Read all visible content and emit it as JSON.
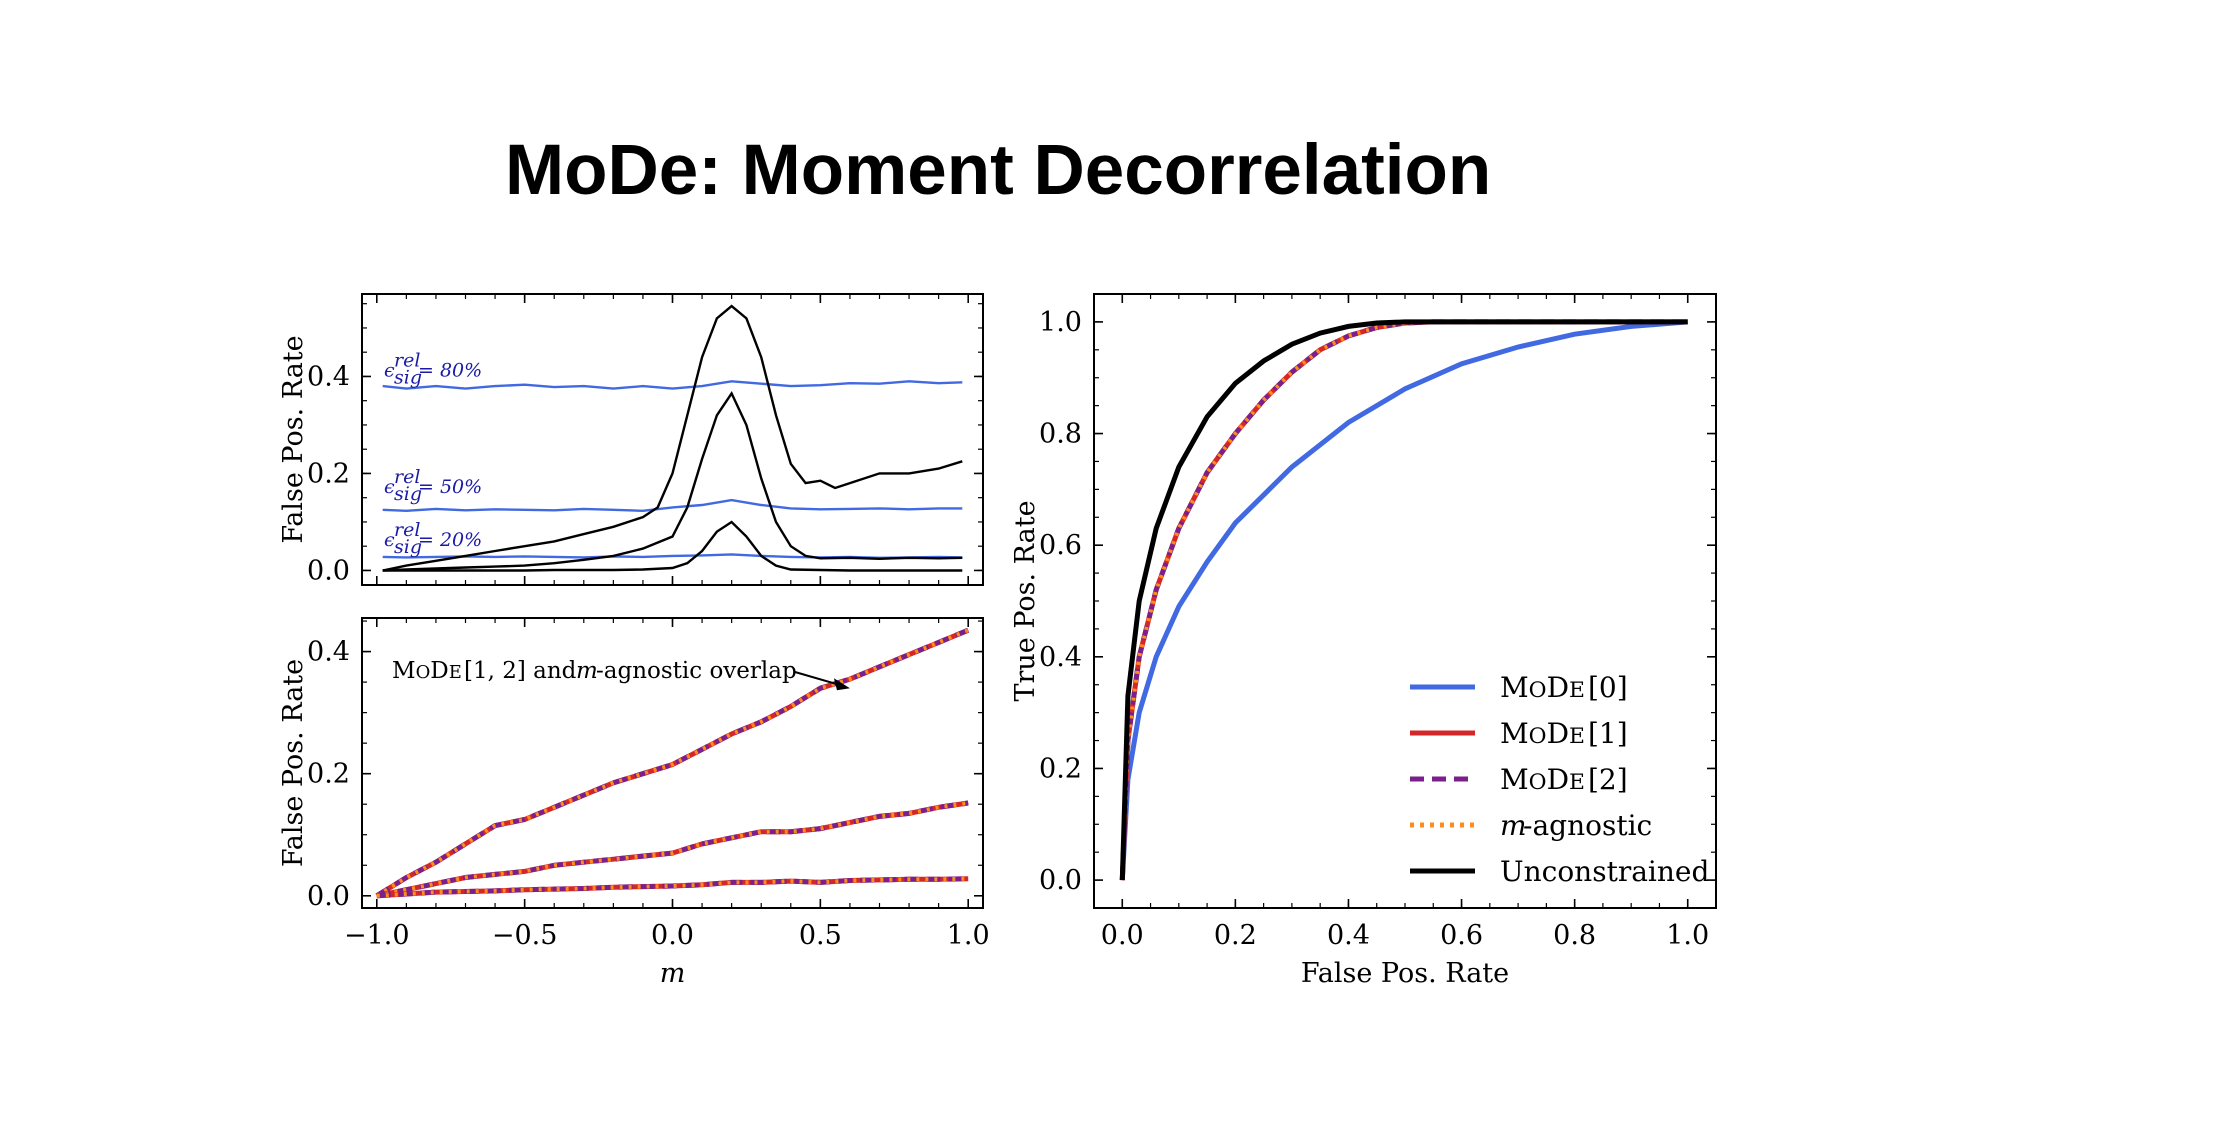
{
  "title": "MoDe:  Moment Decorrelation",
  "colors": {
    "mode0": "#4169e1",
    "mode1": "#d62728",
    "mode2": "#7b1f8a",
    "m_agnostic": "#ff8c1a",
    "unconstrained": "#000000",
    "eps_label": "#1a1aa6"
  },
  "chart_data": [
    {
      "id": "top-left",
      "type": "line",
      "xlabel": "",
      "ylabel": "False Pos. Rate",
      "xlim": [
        -1.05,
        1.05
      ],
      "ylim": [
        -0.03,
        0.57
      ],
      "yticks": [
        0.0,
        0.2,
        0.4
      ],
      "ytick_labels": [
        "0.0",
        "0.2",
        "0.4"
      ],
      "annotations": [
        "ϵ_sig^rel = 80%",
        "ϵ_sig^rel = 50%",
        "ϵ_sig^rel = 20%"
      ],
      "annotation_parts": [
        {
          "base": "ϵ",
          "sup": "rel",
          "sub": "sig",
          "text": " = 80%"
        },
        {
          "base": "ϵ",
          "sup": "rel",
          "sub": "sig",
          "text": " = 50%"
        },
        {
          "base": "ϵ",
          "sup": "rel",
          "sub": "sig",
          "text": " = 20%"
        }
      ],
      "series": [
        {
          "color": "#4169e1",
          "x": [
            -0.98,
            -0.9,
            -0.8,
            -0.7,
            -0.6,
            -0.5,
            -0.4,
            -0.3,
            -0.2,
            -0.1,
            0.0,
            0.1,
            0.2,
            0.3,
            0.4,
            0.5,
            0.6,
            0.7,
            0.8,
            0.9,
            0.98
          ],
          "values": [
            0.38,
            0.375,
            0.38,
            0.375,
            0.38,
            0.383,
            0.378,
            0.38,
            0.375,
            0.38,
            0.375,
            0.38,
            0.39,
            0.385,
            0.38,
            0.382,
            0.386,
            0.385,
            0.39,
            0.386,
            0.388
          ]
        },
        {
          "color": "#4169e1",
          "x": [
            -0.98,
            -0.9,
            -0.8,
            -0.7,
            -0.6,
            -0.5,
            -0.4,
            -0.3,
            -0.2,
            -0.1,
            0.0,
            0.1,
            0.2,
            0.3,
            0.4,
            0.5,
            0.6,
            0.7,
            0.8,
            0.9,
            0.98
          ],
          "values": [
            0.125,
            0.123,
            0.127,
            0.124,
            0.126,
            0.125,
            0.124,
            0.127,
            0.125,
            0.123,
            0.13,
            0.135,
            0.145,
            0.135,
            0.128,
            0.126,
            0.127,
            0.128,
            0.126,
            0.128,
            0.128
          ]
        },
        {
          "color": "#4169e1",
          "x": [
            -0.98,
            -0.9,
            -0.8,
            -0.7,
            -0.6,
            -0.5,
            -0.4,
            -0.3,
            -0.2,
            -0.1,
            0.0,
            0.1,
            0.2,
            0.3,
            0.4,
            0.5,
            0.6,
            0.7,
            0.8,
            0.9,
            0.98
          ],
          "values": [
            0.028,
            0.027,
            0.028,
            0.029,
            0.028,
            0.029,
            0.028,
            0.027,
            0.029,
            0.028,
            0.03,
            0.031,
            0.033,
            0.03,
            0.028,
            0.027,
            0.028,
            0.026,
            0.027,
            0.028,
            0.027
          ]
        },
        {
          "color": "#000000",
          "x": [
            -0.98,
            -0.9,
            -0.8,
            -0.7,
            -0.6,
            -0.5,
            -0.4,
            -0.3,
            -0.2,
            -0.1,
            -0.05,
            0.0,
            0.05,
            0.1,
            0.15,
            0.2,
            0.25,
            0.3,
            0.35,
            0.4,
            0.45,
            0.5,
            0.55,
            0.6,
            0.7,
            0.8,
            0.9,
            0.98
          ],
          "values": [
            0.0,
            0.01,
            0.02,
            0.03,
            0.04,
            0.05,
            0.06,
            0.075,
            0.09,
            0.11,
            0.13,
            0.2,
            0.32,
            0.44,
            0.52,
            0.545,
            0.52,
            0.44,
            0.32,
            0.22,
            0.18,
            0.185,
            0.17,
            0.18,
            0.2,
            0.2,
            0.21,
            0.225
          ]
        },
        {
          "color": "#000000",
          "x": [
            -0.98,
            -0.9,
            -0.8,
            -0.7,
            -0.6,
            -0.5,
            -0.4,
            -0.3,
            -0.2,
            -0.1,
            0.0,
            0.05,
            0.1,
            0.15,
            0.2,
            0.25,
            0.3,
            0.35,
            0.4,
            0.45,
            0.5,
            0.6,
            0.7,
            0.8,
            0.9,
            0.98
          ],
          "values": [
            0.0,
            0.002,
            0.004,
            0.006,
            0.008,
            0.01,
            0.015,
            0.022,
            0.03,
            0.045,
            0.07,
            0.13,
            0.23,
            0.32,
            0.365,
            0.3,
            0.19,
            0.1,
            0.05,
            0.03,
            0.025,
            0.026,
            0.024,
            0.026,
            0.025,
            0.026
          ]
        },
        {
          "color": "#000000",
          "x": [
            -0.98,
            -0.9,
            -0.8,
            -0.7,
            -0.6,
            -0.5,
            -0.4,
            -0.3,
            -0.2,
            -0.1,
            0.0,
            0.05,
            0.1,
            0.15,
            0.2,
            0.25,
            0.3,
            0.35,
            0.4,
            0.5,
            0.6,
            0.7,
            0.8,
            0.9,
            0.98
          ],
          "values": [
            0.0,
            0.0,
            0.0,
            0.0,
            0.0,
            0.0,
            0.001,
            0.001,
            0.001,
            0.002,
            0.005,
            0.015,
            0.04,
            0.08,
            0.1,
            0.07,
            0.03,
            0.01,
            0.002,
            0.001,
            0.0,
            0.0,
            0.0,
            0.0,
            0.0
          ]
        }
      ]
    },
    {
      "id": "bottom-left",
      "type": "line",
      "xlabel": "m",
      "ylabel": "False Pos. Rate",
      "xlim": [
        -1.05,
        1.05
      ],
      "ylim": [
        -0.02,
        0.455
      ],
      "xticks": [
        -1.0,
        -0.5,
        0.0,
        0.5,
        1.0
      ],
      "xtick_labels": [
        "−1.0",
        "−0.5",
        "0.0",
        "0.5",
        "1.0"
      ],
      "yticks": [
        0.0,
        0.2,
        0.4
      ],
      "ytick_labels": [
        "0.0",
        "0.2",
        "0.4"
      ],
      "annotation": "MoDe[1, 2] and m-agnostic overlap",
      "annotation_parts": {
        "name": "MoDe",
        "idx": "[1, 2]",
        "mid": " and ",
        "var": "m",
        "rest": "-agnostic overlap"
      },
      "annotation_arrow_target": [
        0.6,
        0.34
      ],
      "series": [
        {
          "name": "MoDe[1]",
          "x": [
            -1.0,
            -0.9,
            -0.8,
            -0.7,
            -0.6,
            -0.5,
            -0.4,
            -0.3,
            -0.2,
            -0.1,
            0.0,
            0.1,
            0.2,
            0.3,
            0.4,
            0.5,
            0.6,
            0.7,
            0.8,
            0.9,
            1.0
          ],
          "values": [
            0.0,
            0.03,
            0.055,
            0.085,
            0.115,
            0.125,
            0.145,
            0.165,
            0.185,
            0.2,
            0.215,
            0.24,
            0.265,
            0.285,
            0.31,
            0.34,
            0.355,
            0.375,
            0.395,
            0.415,
            0.435
          ]
        },
        {
          "name": "MoDe[1]",
          "x": [
            -1.0,
            -0.9,
            -0.8,
            -0.7,
            -0.6,
            -0.5,
            -0.4,
            -0.3,
            -0.2,
            -0.1,
            0.0,
            0.1,
            0.2,
            0.3,
            0.4,
            0.5,
            0.6,
            0.7,
            0.8,
            0.9,
            1.0
          ],
          "values": [
            0.0,
            0.01,
            0.02,
            0.03,
            0.035,
            0.04,
            0.05,
            0.055,
            0.06,
            0.065,
            0.07,
            0.085,
            0.095,
            0.105,
            0.105,
            0.11,
            0.12,
            0.13,
            0.135,
            0.145,
            0.152
          ]
        },
        {
          "name": "MoDe[1]",
          "x": [
            -1.0,
            -0.9,
            -0.8,
            -0.7,
            -0.6,
            -0.5,
            -0.4,
            -0.3,
            -0.2,
            -0.1,
            0.0,
            0.1,
            0.2,
            0.3,
            0.4,
            0.5,
            0.6,
            0.7,
            0.8,
            0.9,
            1.0
          ],
          "values": [
            0.0,
            0.003,
            0.006,
            0.007,
            0.008,
            0.01,
            0.011,
            0.012,
            0.014,
            0.015,
            0.016,
            0.018,
            0.022,
            0.022,
            0.024,
            0.022,
            0.025,
            0.026,
            0.027,
            0.027,
            0.028
          ]
        }
      ]
    },
    {
      "id": "right",
      "type": "line",
      "xlabel": "False Pos. Rate",
      "ylabel": "True Pos. Rate",
      "xlim": [
        -0.05,
        1.05
      ],
      "ylim": [
        -0.05,
        1.05
      ],
      "xticks": [
        0.0,
        0.2,
        0.4,
        0.6,
        0.8,
        1.0
      ],
      "xtick_labels": [
        "0.0",
        "0.2",
        "0.4",
        "0.6",
        "0.8",
        "1.0"
      ],
      "yticks": [
        0.0,
        0.2,
        0.4,
        0.6,
        0.8,
        1.0
      ],
      "ytick_labels": [
        "0.0",
        "0.2",
        "0.4",
        "0.6",
        "0.8",
        "1.0"
      ],
      "legend_position": "lower-right",
      "legend": [
        {
          "name": "MoDe",
          "idx": "[0]",
          "color": "#4169e1",
          "style": "solid"
        },
        {
          "name": "MoDe",
          "idx": "[1]",
          "color": "#d62728",
          "style": "solid"
        },
        {
          "name": "MoDe",
          "idx": "[2]",
          "color": "#7b1f8a",
          "style": "dashed"
        },
        {
          "name": "m",
          "idx": "-agnostic",
          "color": "#ff8c1a",
          "style": "dotted"
        },
        {
          "name": "Unconstrained",
          "idx": "",
          "color": "#000000",
          "style": "solid"
        }
      ],
      "series": [
        {
          "name": "MoDe[0]",
          "x": [
            0.0,
            0.01,
            0.03,
            0.06,
            0.1,
            0.15,
            0.2,
            0.3,
            0.4,
            0.5,
            0.6,
            0.7,
            0.8,
            0.9,
            1.0
          ],
          "values": [
            0.0,
            0.18,
            0.3,
            0.4,
            0.49,
            0.57,
            0.64,
            0.74,
            0.82,
            0.88,
            0.925,
            0.955,
            0.978,
            0.992,
            1.0
          ]
        },
        {
          "name": "MoDe[1]",
          "x": [
            0.0,
            0.01,
            0.03,
            0.06,
            0.1,
            0.15,
            0.2,
            0.25,
            0.3,
            0.35,
            0.4,
            0.45,
            0.5,
            0.55,
            0.6,
            0.8,
            1.0
          ],
          "values": [
            0.0,
            0.25,
            0.4,
            0.52,
            0.63,
            0.73,
            0.8,
            0.86,
            0.91,
            0.95,
            0.975,
            0.99,
            0.998,
            1.0,
            1.0,
            1.0,
            1.0
          ]
        },
        {
          "name": "Unconstrained",
          "x": [
            0.0,
            0.01,
            0.03,
            0.06,
            0.1,
            0.15,
            0.2,
            0.25,
            0.3,
            0.35,
            0.4,
            0.45,
            0.5,
            0.55,
            0.6,
            0.8,
            1.0
          ],
          "values": [
            0.0,
            0.33,
            0.5,
            0.63,
            0.74,
            0.83,
            0.89,
            0.93,
            0.96,
            0.98,
            0.992,
            0.998,
            1.0,
            1.0,
            1.0,
            1.0,
            1.0
          ]
        }
      ]
    }
  ]
}
